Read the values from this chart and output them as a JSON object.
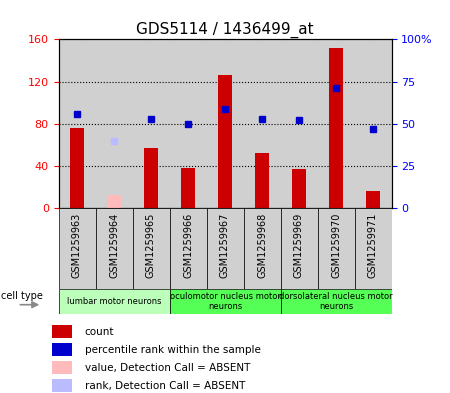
{
  "title": "GDS5114 / 1436499_at",
  "samples": [
    "GSM1259963",
    "GSM1259964",
    "GSM1259965",
    "GSM1259966",
    "GSM1259967",
    "GSM1259968",
    "GSM1259969",
    "GSM1259970",
    "GSM1259971"
  ],
  "count_values": [
    76,
    null,
    57,
    38,
    126,
    52,
    37,
    152,
    16
  ],
  "count_absent": [
    null,
    13,
    null,
    null,
    null,
    null,
    null,
    null,
    null
  ],
  "rank_values": [
    56,
    null,
    53,
    50,
    59,
    53,
    52,
    71,
    47
  ],
  "rank_absent": [
    null,
    40,
    null,
    null,
    null,
    null,
    null,
    null,
    null
  ],
  "ylim_left": [
    0,
    160
  ],
  "ylim_right": [
    0,
    100
  ],
  "yticks_left": [
    0,
    40,
    80,
    120,
    160
  ],
  "yticks_right": [
    0,
    25,
    50,
    75,
    100
  ],
  "yticklabels_left": [
    "0",
    "40",
    "80",
    "120",
    "160"
  ],
  "yticklabels_right": [
    "0",
    "25",
    "50",
    "75",
    "100%"
  ],
  "cell_groups": [
    {
      "label": "lumbar motor neurons",
      "start": 0,
      "end": 3,
      "color": "#bbffbb"
    },
    {
      "label": "oculomotor nucleus motor\nneurons",
      "start": 3,
      "end": 6,
      "color": "#55ff55"
    },
    {
      "label": "dorsolateral nucleus motor\nneurons",
      "start": 6,
      "end": 9,
      "color": "#55ff55"
    }
  ],
  "cell_type_label": "cell type",
  "legend_items": [
    {
      "color": "#cc0000",
      "label": "count",
      "marker": "square"
    },
    {
      "color": "#0000cc",
      "label": "percentile rank within the sample",
      "marker": "square"
    },
    {
      "color": "#ffbbbb",
      "label": "value, Detection Call = ABSENT",
      "marker": "square"
    },
    {
      "color": "#bbbbff",
      "label": "rank, Detection Call = ABSENT",
      "marker": "square"
    }
  ],
  "bar_color": "#cc0000",
  "bar_absent_color": "#ffbbbb",
  "rank_color": "#0000cc",
  "rank_absent_color": "#bbbbff",
  "col_bg_color": "#d0d0d0",
  "plot_bg_color": "#ffffff",
  "grid_color": "#000000",
  "title_fontsize": 11,
  "tick_fontsize": 8,
  "sample_fontsize": 7
}
